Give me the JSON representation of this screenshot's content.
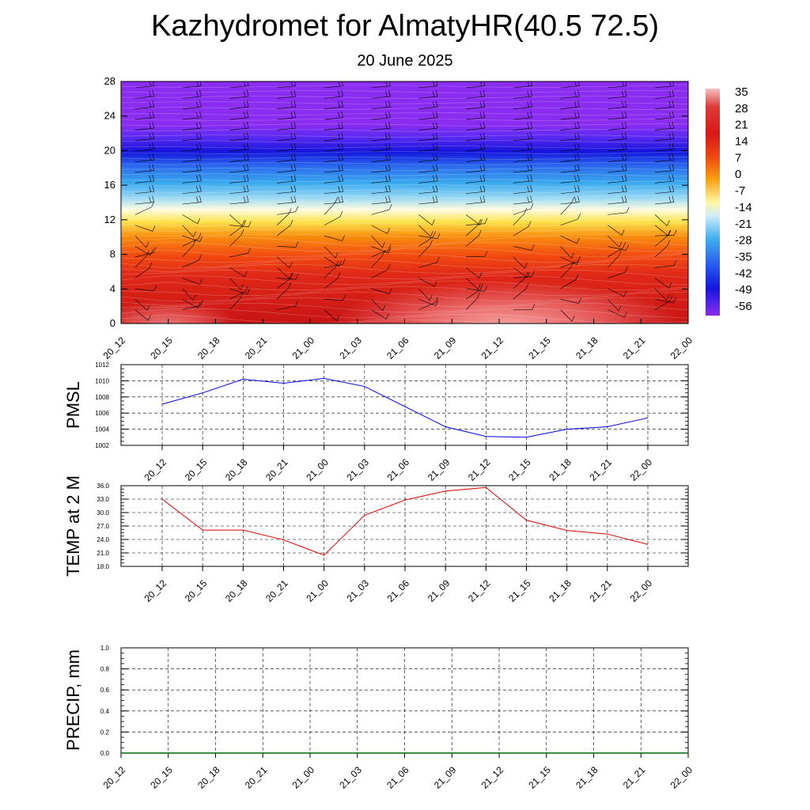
{
  "title": "Kazhydromet for AlmatyHR(40.5 72.5)",
  "subtitle": "20 June 2025",
  "chart_data": [
    {
      "type": "heatmap",
      "name": "temperature-profile",
      "x": [
        "20_12",
        "20_15",
        "20_18",
        "20_21",
        "21_00",
        "21_03",
        "21_06",
        "21_09",
        "21_12",
        "21_15",
        "21_18",
        "21_21",
        "22_00"
      ],
      "yticks": [
        "0",
        "4",
        "8",
        "12",
        "16",
        "20",
        "24",
        "28"
      ],
      "ylim": [
        0,
        28
      ],
      "colorbar_labels": [
        "35",
        "28",
        "21",
        "14",
        "7",
        "0",
        "-7",
        "-14",
        "-21",
        "-28",
        "-35",
        "-42",
        "-49",
        "-56"
      ],
      "colorbar_range": [
        -60,
        38
      ],
      "wind_barbs": true
    },
    {
      "type": "line",
      "ylabel": "PMSL",
      "x": [
        "20_12",
        "20_15",
        "20_18",
        "20_21",
        "21_00",
        "21_03",
        "21_06",
        "21_09",
        "21_12",
        "21_15",
        "21_18",
        "21_21",
        "22_00"
      ],
      "values": [
        1007.1,
        1008.5,
        1010.2,
        1009.7,
        1010.3,
        1009.3,
        1006.8,
        1004.3,
        1003.1,
        1003.0,
        1004.0,
        1004.3,
        1005.4
      ],
      "yticks": [
        "1002",
        "1004",
        "1006",
        "1008",
        "1010",
        "1012"
      ],
      "ylim": [
        1002,
        1012
      ],
      "color": "#0000dd",
      "grid": true
    },
    {
      "type": "line",
      "ylabel": "TEMP at 2 M",
      "x": [
        "20_12",
        "20_15",
        "20_18",
        "20_21",
        "21_00",
        "21_03",
        "21_06",
        "21_09",
        "21_12",
        "21_15",
        "21_18",
        "21_21",
        "22_00"
      ],
      "values": [
        33.0,
        26.1,
        26.1,
        23.9,
        20.5,
        29.4,
        32.8,
        34.8,
        35.6,
        28.3,
        26.0,
        25.2,
        22.9
      ],
      "yticks": [
        "18.0",
        "21.0",
        "24.0",
        "27.0",
        "30.0",
        "33.0",
        "36.0"
      ],
      "ylim": [
        18,
        36
      ],
      "color": "#dd0000",
      "grid": true
    },
    {
      "type": "line",
      "ylabel": "PRECIP, mm",
      "x": [
        "20_12",
        "20_15",
        "20_18",
        "20_21",
        "21_00",
        "21_03",
        "21_06",
        "21_09",
        "21_12",
        "21_15",
        "21_18",
        "21_21",
        "22_00"
      ],
      "values": [
        0,
        0,
        0,
        0,
        0,
        0,
        0,
        0,
        0,
        0,
        0,
        0,
        0
      ],
      "yticks": [
        "0.0",
        "0.2",
        "0.4",
        "0.6",
        "0.8",
        "1.0"
      ],
      "ylim": [
        0,
        1
      ],
      "color": "#006600",
      "grid": true
    }
  ]
}
